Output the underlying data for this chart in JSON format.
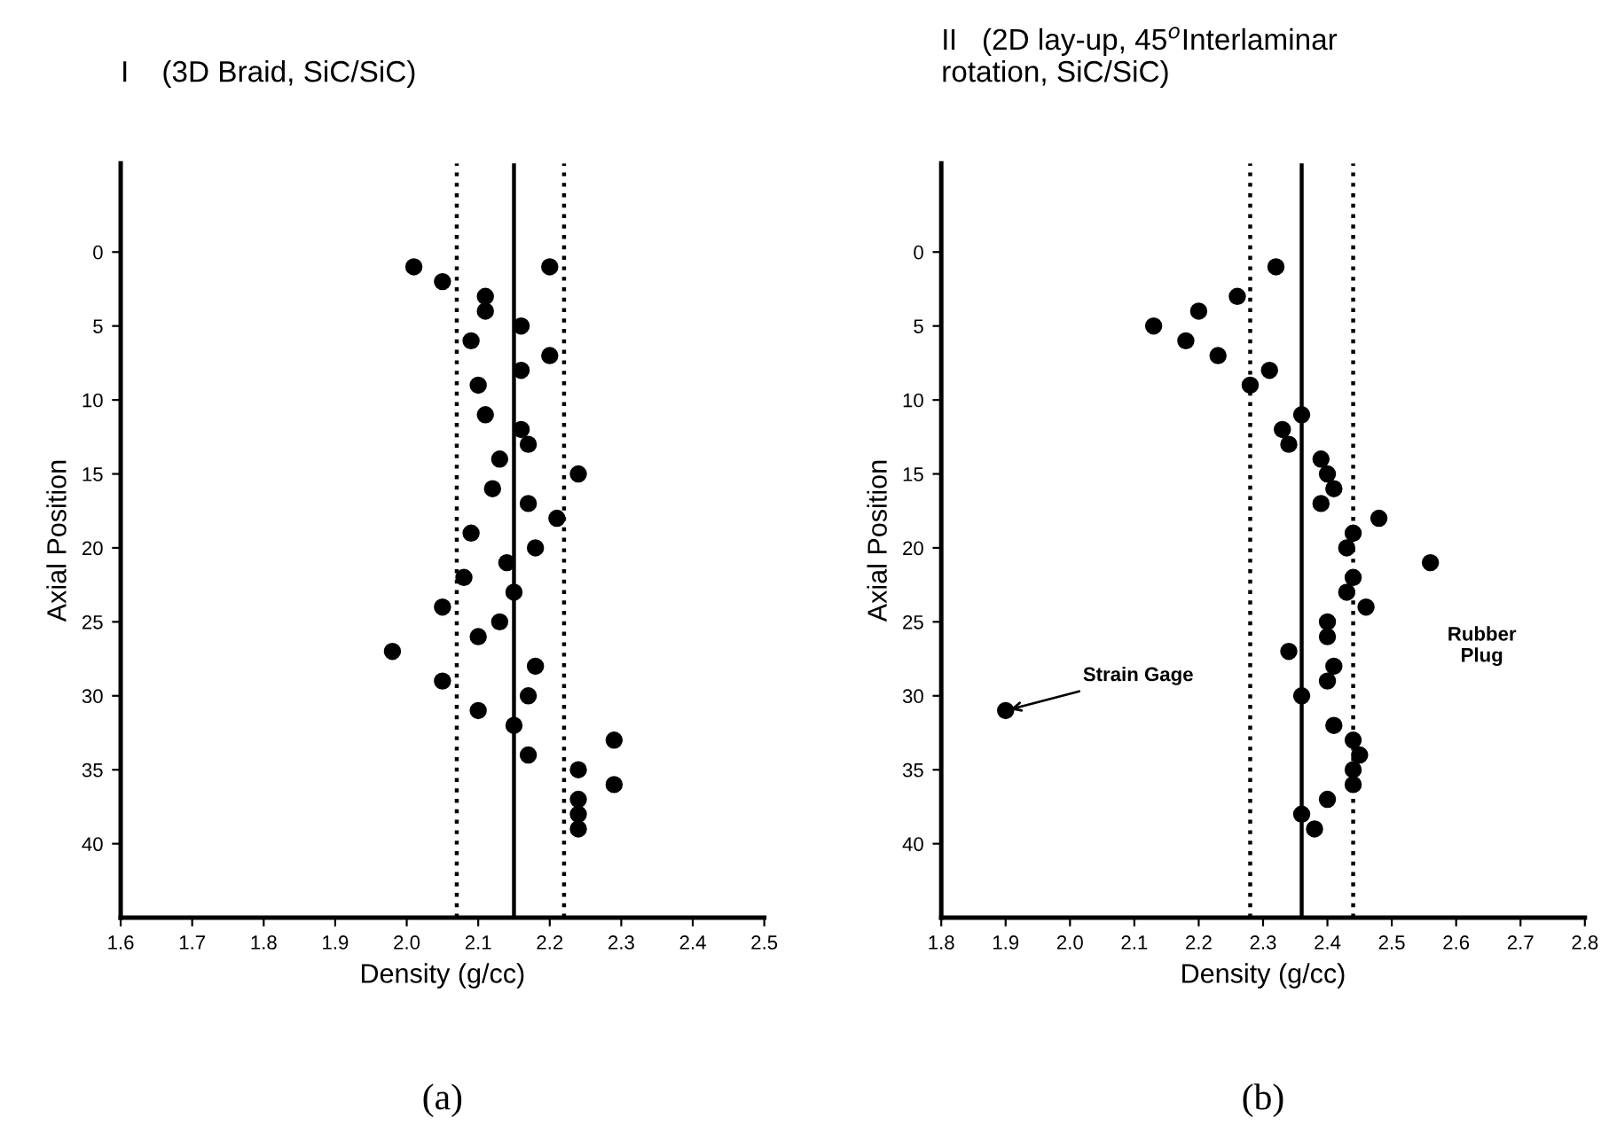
{
  "chart_data": [
    {
      "type": "scatter",
      "title": "I    (3D Braid, SiC/SiC)",
      "xlabel": "Density (g/cc)",
      "ylabel": "Axial Position",
      "marker": "circle",
      "x": [
        2.01,
        2.2,
        2.05,
        2.11,
        2.11,
        2.16,
        2.09,
        2.2,
        2.16,
        2.1,
        2.11,
        2.16,
        2.17,
        2.13,
        2.24,
        2.12,
        2.17,
        2.21,
        2.09,
        2.18,
        2.14,
        2.08,
        2.15,
        2.05,
        2.13,
        2.1,
        1.98,
        2.18,
        2.05,
        2.17,
        2.1,
        2.15,
        2.29,
        2.17,
        2.24,
        2.29,
        2.24,
        2.24,
        2.24
      ],
      "series": [
        {
          "color": "#000000",
          "values": [
            1,
            1,
            2,
            3,
            4,
            5,
            6,
            7,
            8,
            9,
            11,
            12,
            13,
            14,
            15,
            16,
            17,
            18,
            19,
            20,
            21,
            22,
            23,
            24,
            25,
            26,
            27,
            28,
            29,
            30,
            31,
            32,
            33,
            34,
            35,
            36,
            37,
            38,
            39
          ]
        }
      ],
      "xlim": [
        1.6,
        2.5
      ],
      "xticks": [
        {
          "value": 1.6,
          "label": "1.6"
        },
        {
          "value": 1.7,
          "label": "1.7"
        },
        {
          "value": 1.8,
          "label": "1.8"
        },
        {
          "value": 1.9,
          "label": "1.9"
        },
        {
          "value": 2.0,
          "label": "2.0"
        },
        {
          "value": 2.1,
          "label": "2.1"
        },
        {
          "value": 2.2,
          "label": "2.2"
        },
        {
          "value": 2.3,
          "label": "2.3"
        },
        {
          "value": 2.4,
          "label": "2.4"
        },
        {
          "value": 2.5,
          "label": "2.5"
        }
      ],
      "ylim": [
        45,
        -6
      ],
      "yticks": [
        0,
        5,
        10,
        15,
        20,
        25,
        30,
        35,
        40
      ],
      "ref_lines": [
        {
          "axis": "x",
          "value": 2.07,
          "line_style": "dotted"
        },
        {
          "axis": "x",
          "value": 2.15,
          "line_style": "solid"
        },
        {
          "axis": "x",
          "value": 2.22,
          "line_style": "dotted"
        }
      ],
      "annotations": [
        "(a)"
      ]
    },
    {
      "type": "scatter",
      "title": "II   (2D lay-up, 45$^{o}$Interlaminar\nrotation, SiC/SiC)",
      "xlabel": "Density (g/cc)",
      "ylabel": "Axial Position",
      "marker": "circle",
      "x": [
        2.32,
        2.26,
        2.2,
        2.13,
        2.18,
        2.23,
        2.31,
        2.28,
        2.36,
        2.33,
        2.34,
        2.39,
        2.4,
        2.41,
        2.39,
        2.48,
        2.44,
        2.43,
        2.56,
        2.44,
        2.43,
        2.46,
        2.4,
        2.4,
        2.34,
        2.41,
        2.4,
        2.36,
        1.9,
        2.41,
        2.44,
        2.45,
        2.44,
        2.44,
        2.4,
        2.36,
        2.38
      ],
      "series": [
        {
          "color": "#000000",
          "values": [
            1,
            3,
            4,
            5,
            6,
            7,
            8,
            9,
            11,
            12,
            13,
            14,
            15,
            16,
            17,
            18,
            19,
            20,
            21,
            22,
            23,
            24,
            25,
            26,
            27,
            28,
            29,
            30,
            31,
            32,
            33,
            34,
            35,
            36,
            37,
            38,
            39
          ]
        }
      ],
      "xlim": [
        1.8,
        2.8
      ],
      "xticks": [
        {
          "value": 1.8,
          "label": "1.8"
        },
        {
          "value": 1.9,
          "label": "1.9"
        },
        {
          "value": 2.0,
          "label": "2.0"
        },
        {
          "value": 2.1,
          "label": "2.1"
        },
        {
          "value": 2.2,
          "label": "2.2"
        },
        {
          "value": 2.3,
          "label": "2.3"
        },
        {
          "value": 2.4,
          "label": "2.4"
        },
        {
          "value": 2.5,
          "label": "2.5"
        },
        {
          "value": 2.6,
          "label": "2.6"
        },
        {
          "value": 2.7,
          "label": "2.7"
        },
        {
          "value": 2.8,
          "label": "2.8"
        }
      ],
      "ylim": [
        45,
        -6
      ],
      "yticks": [
        0,
        5,
        10,
        15,
        20,
        25,
        30,
        35,
        40
      ],
      "ref_lines": [
        {
          "axis": "x",
          "value": 2.28,
          "line_style": "dotted"
        },
        {
          "axis": "x",
          "value": 2.36,
          "line_style": "solid"
        },
        {
          "axis": "x",
          "value": 2.44,
          "line_style": "dotted"
        }
      ],
      "annotations": [
        {
          "text": "Strain Gage",
          "x": 1.9,
          "y": 31
        },
        "Rubber\nPlug",
        "(b)"
      ]
    }
  ]
}
